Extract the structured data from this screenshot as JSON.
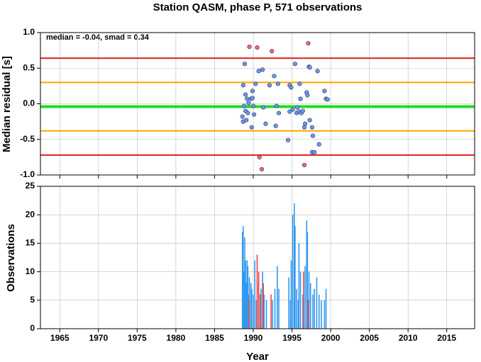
{
  "chart_data": [
    {
      "type": "scatter",
      "title": "Station QASM, phase P, 571 observations",
      "ylabel": "Median residual [s]",
      "annotation": "median = -0.04, smad = 0.34",
      "xlim": [
        1962.5,
        2018.6
      ],
      "ylim": [
        -1,
        1
      ],
      "yticks": [
        {
          "value": -1,
          "label": "-1.0"
        },
        -0.5,
        {
          "value": 0,
          "label": "0.0"
        },
        0.5,
        {
          "value": 1,
          "label": "1.0"
        }
      ],
      "hlines": [
        {
          "value": 0.64,
          "color": "#e02020"
        },
        {
          "value": 0.3,
          "color": "#ffa500"
        },
        {
          "value": -0.04,
          "color": "#22dd22"
        },
        {
          "value": -0.38,
          "color": "#ffa500"
        },
        {
          "value": -0.72,
          "color": "#e02020"
        }
      ],
      "series": [
        {
          "color": "#6699ee",
          "x": [
            1988.9,
            1988.7,
            1989.0,
            1989.2,
            1988.8,
            1989.0,
            1988.6,
            1988.7,
            1989.1,
            1989.3,
            1989.4,
            1989.7,
            1989.9,
            1990.0,
            1990.3,
            1989.9,
            1990.1,
            1989.8,
            1990.7,
            1991.2,
            1991.3,
            1991.6,
            1992.1,
            1992.7,
            1993.2,
            1993.0,
            1993.3,
            1992.9,
            1994.5,
            1994.7,
            1994.9,
            1994.7,
            1995.1,
            1995.4,
            1995.6,
            1995.7,
            1995.9,
            1996.1,
            1996.2,
            1996.4,
            1996.7,
            1996.6,
            1996.9,
            1997.0,
            1996.0,
            1997.2,
            1997.3,
            1997.3,
            1997.6,
            1997.7,
            1997.6,
            1997.9,
            1998.3,
            1998.5,
            1999.2,
            1999.4,
            1999.6
          ],
          "values": [
            0.56,
            0.26,
            0.13,
            0.07,
            -0.03,
            -0.1,
            -0.18,
            -0.25,
            -0.23,
            -0.13,
            0.01,
            0.07,
            0.08,
            -0.03,
            0.28,
            0.18,
            -0.15,
            -0.33,
            0.46,
            0.48,
            -0.05,
            -0.28,
            0.26,
            0.39,
            0.28,
            -0.03,
            -0.13,
            -0.31,
            -0.51,
            0.26,
            0.23,
            -0.11,
            -0.08,
            0.56,
            -0.13,
            -0.05,
            -0.11,
            0.07,
            -0.13,
            -0.1,
            -0.28,
            -0.33,
            0.16,
            0.12,
            0.28,
            0.52,
            0.51,
            -0.23,
            -0.33,
            -0.45,
            -0.68,
            -0.68,
            0.46,
            -0.57,
            0.18,
            0.07,
            0.06
          ]
        },
        {
          "color": "#ff6666",
          "x": [
            1989.5,
            1990.5,
            1992.4,
            1997.1,
            1990.8,
            1991.1,
            1996.6
          ],
          "values": [
            0.8,
            0.79,
            0.74,
            0.85,
            -0.75,
            -0.92,
            -0.86
          ]
        }
      ]
    },
    {
      "type": "bar",
      "ylabel": "Observations",
      "xlabel": "Year",
      "xlim": [
        1962.5,
        2018.6
      ],
      "ylim": [
        0,
        25
      ],
      "xticks": [
        1965,
        1970,
        1975,
        1980,
        1985,
        1990,
        1995,
        2000,
        2005,
        2010,
        2015
      ],
      "yticks": [
        0,
        5,
        10,
        15,
        20,
        25
      ],
      "grid": true,
      "series": [
        {
          "color": "#3399ee",
          "x": [
            1988.6,
            1988.7,
            1988.8,
            1988.9,
            1989.0,
            1989.1,
            1989.2,
            1989.3,
            1989.4,
            1989.5,
            1989.7,
            1989.8,
            1990.0,
            1990.2,
            1990.4,
            1990.7,
            1990.9,
            1991.0,
            1991.2,
            1991.4,
            1991.7,
            1992.5,
            1992.8,
            1993.1,
            1993.3,
            1994.6,
            1994.8,
            1994.9,
            1995.1,
            1995.3,
            1995.4,
            1995.6,
            1995.8,
            1995.9,
            1996.1,
            1996.4,
            1996.7,
            1996.9,
            1997.0,
            1997.2,
            1997.4,
            1997.7,
            1997.9,
            1998.2,
            1998.5,
            1998.8,
            1999.2,
            1999.4
          ],
          "values": [
            17,
            18,
            10,
            16,
            12,
            8,
            12,
            11,
            6,
            9,
            8,
            7,
            6,
            12,
            5,
            8,
            6,
            7,
            10,
            6,
            5,
            5,
            7,
            11,
            7,
            9,
            5,
            12,
            20,
            22,
            18,
            7,
            5,
            15,
            10,
            6,
            11,
            19,
            17,
            10,
            8,
            6,
            7,
            9,
            6,
            5,
            5,
            7
          ]
        },
        {
          "color": "#ee4444",
          "x": [
            1989.5,
            1990.5,
            1990.7,
            1990.9,
            1991.3,
            1992.3,
            1996.5,
            1997.1
          ],
          "values": [
            5,
            13,
            10,
            6,
            8,
            6,
            10,
            5
          ]
        }
      ]
    }
  ]
}
